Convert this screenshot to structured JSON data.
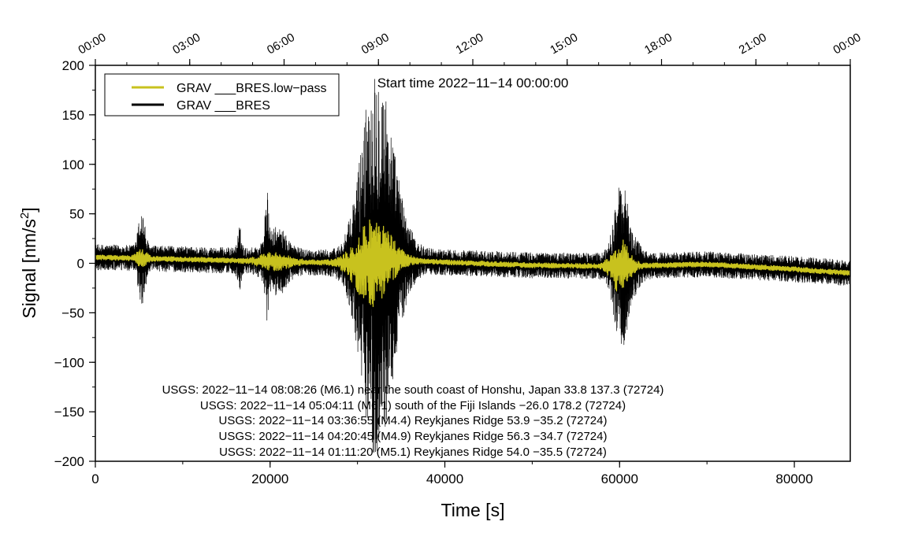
{
  "chart_data": {
    "type": "line",
    "title": "Start time 2022−11−14 00:00:00",
    "xlabel": "Time [s]",
    "ylabel_main": "Signal [nm/s",
    "ylabel_sup": "2",
    "ylabel_end": "]",
    "xlim": [
      0,
      86400
    ],
    "ylim": [
      -200,
      200
    ],
    "x_ticks": [
      0,
      20000,
      40000,
      60000,
      80000
    ],
    "x_tick_labels": [
      "0",
      "20000",
      "40000",
      "60000",
      "80000"
    ],
    "x_minor_step": 10000,
    "y_ticks": [
      -200,
      -150,
      -100,
      -50,
      0,
      50,
      100,
      150,
      200
    ],
    "y_tick_labels": [
      "−200",
      "−150",
      "−100",
      "−50",
      "0",
      "50",
      "100",
      "150",
      "200"
    ],
    "y_minor_step": 50,
    "top_axis": {
      "ticks": [
        0,
        10800,
        21600,
        32400,
        43200,
        54000,
        64800,
        75600,
        86400
      ],
      "labels": [
        "00:00",
        "03:00",
        "06:00",
        "09:00",
        "12:00",
        "15:00",
        "18:00",
        "21:00",
        "00:00"
      ],
      "minor_step": 3600
    },
    "grid": false,
    "legend_position": "top-left",
    "series": [
      {
        "name": "GRAV ___BRES.low−pass",
        "color": "#c8c21e",
        "baseline": [
          [
            0,
            6
          ],
          [
            10000,
            4
          ],
          [
            20000,
            2
          ],
          [
            30000,
            0
          ],
          [
            34000,
            4
          ],
          [
            40000,
            1
          ],
          [
            50000,
            -2
          ],
          [
            60000,
            -3
          ],
          [
            70000,
            -1
          ],
          [
            80000,
            -6
          ],
          [
            86400,
            -10
          ]
        ],
        "noise_amplitude": 2.5,
        "bursts": [
          {
            "t": 5300,
            "width": 500,
            "amp": 7
          },
          {
            "t": 20500,
            "width": 1500,
            "amp": 7
          },
          {
            "t": 31200,
            "width": 1600,
            "amp": 25
          },
          {
            "t": 32500,
            "width": 1700,
            "amp": 22
          },
          {
            "t": 60100,
            "width": 900,
            "amp": 26
          }
        ]
      },
      {
        "name": "GRAV ___BRES",
        "color": "#000000",
        "baseline": [
          [
            0,
            6
          ],
          [
            10000,
            4
          ],
          [
            20000,
            2
          ],
          [
            30000,
            0
          ],
          [
            34000,
            4
          ],
          [
            40000,
            1
          ],
          [
            50000,
            -2
          ],
          [
            60000,
            -3
          ],
          [
            70000,
            -1
          ],
          [
            80000,
            -6
          ],
          [
            86400,
            -10
          ]
        ],
        "noise_amplitude": 13,
        "bursts": [
          {
            "t": 5300,
            "width": 350,
            "amp": 38
          },
          {
            "t": 16500,
            "width": 200,
            "amp": 22
          },
          {
            "t": 19600,
            "width": 180,
            "amp": 50
          },
          {
            "t": 20800,
            "width": 1100,
            "amp": 22
          },
          {
            "t": 31200,
            "width": 1400,
            "amp": 65
          },
          {
            "t": 32400,
            "width": 1500,
            "amp": 120
          },
          {
            "t": 34000,
            "width": 1500,
            "amp": 35
          },
          {
            "t": 60100,
            "width": 750,
            "amp": 62
          },
          {
            "t": 61200,
            "width": 900,
            "amp": 18
          }
        ]
      }
    ],
    "annotations": [
      "USGS: 2022−11−14 08:08:26 (M6.1) near the south coast of Honshu, Japan 33.8 137.3 (72724)",
      "USGS: 2022−11−14 05:04:11 (M6.1) south of the Fiji Islands −26.0 178.2 (72724)",
      "USGS: 2022−11−14 03:36:55 (M4.4) Reykjanes Ridge 53.9 −35.2 (72724)",
      "USGS: 2022−11−14 04:20:45 (M4.9) Reykjanes Ridge 56.3 −34.7 (72724)",
      "USGS: 2022−11−14 01:11:20 (M5.1) Reykjanes Ridge 54.0 −35.5 (72724)"
    ]
  }
}
